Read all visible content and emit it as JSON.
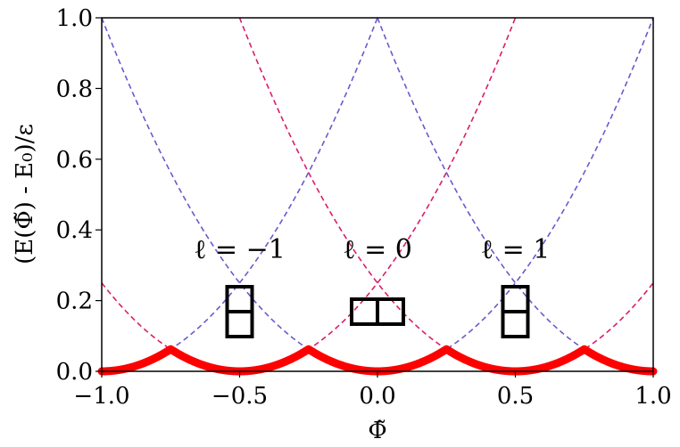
{
  "chart_data": {
    "type": "line",
    "xlabel": "Φ̃",
    "ylabel": "(E(Φ̃) - E₀)/ε",
    "xlim": [
      -1.0,
      1.0
    ],
    "ylim": [
      0.0,
      1.0
    ],
    "x_ticks": [
      "−1.0",
      "−0.5",
      "0.0",
      "0.5",
      "1.0"
    ],
    "y_ticks": [
      "0.0",
      "0.2",
      "0.4",
      "0.6",
      "0.8",
      "1.0"
    ],
    "grid": false,
    "series": [
      {
        "style": "solid",
        "color": "#ff0000",
        "formula": "min over l of (x - l)^2, l in {-1, -0.5, 0, 0.5, 1}"
      },
      {
        "style": "dashed",
        "color": "#6a5acd",
        "centers": [
          -1.0,
          0.0,
          1.0
        ],
        "formula": "(x - c)^2"
      },
      {
        "style": "dashed",
        "color": "#dc1c6a",
        "centers": [
          -0.5,
          0.5
        ],
        "formula": "(x - c)^2"
      }
    ],
    "annotations": [
      {
        "text": "ℓ = −1",
        "x": -0.5,
        "y": 0.32,
        "box": "vertical-split"
      },
      {
        "text": "ℓ = 0",
        "x": 0.0,
        "y": 0.32,
        "box": "horizontal-split"
      },
      {
        "text": "ℓ = 1",
        "x": 0.5,
        "y": 0.32,
        "box": "vertical-split"
      }
    ]
  }
}
